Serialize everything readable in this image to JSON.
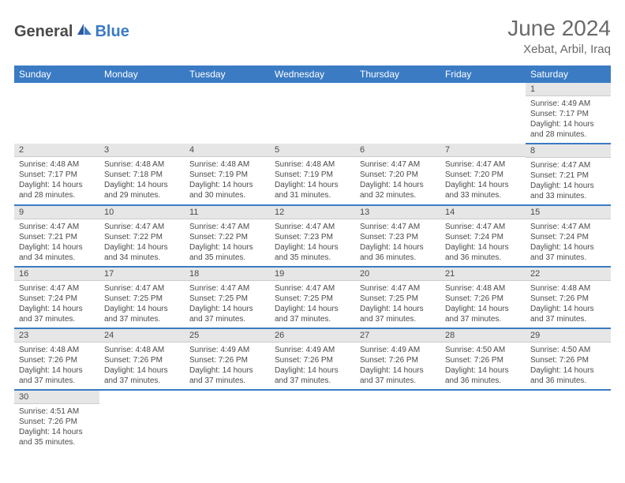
{
  "logo": {
    "text_general": "General",
    "text_blue": "Blue"
  },
  "header": {
    "month_title": "June 2024",
    "location": "Xebat, Arbil, Iraq"
  },
  "colors": {
    "header_bg": "#3b7bc4",
    "header_text": "#ffffff",
    "day_num_bg": "#e6e6e6",
    "text": "#4a4a4a",
    "border": "#3b7bc4"
  },
  "day_names": [
    "Sunday",
    "Monday",
    "Tuesday",
    "Wednesday",
    "Thursday",
    "Friday",
    "Saturday"
  ],
  "weeks": [
    [
      null,
      null,
      null,
      null,
      null,
      null,
      {
        "num": "1",
        "sunrise": "Sunrise: 4:49 AM",
        "sunset": "Sunset: 7:17 PM",
        "daylight": "Daylight: 14 hours and 28 minutes."
      }
    ],
    [
      {
        "num": "2",
        "sunrise": "Sunrise: 4:48 AM",
        "sunset": "Sunset: 7:17 PM",
        "daylight": "Daylight: 14 hours and 28 minutes."
      },
      {
        "num": "3",
        "sunrise": "Sunrise: 4:48 AM",
        "sunset": "Sunset: 7:18 PM",
        "daylight": "Daylight: 14 hours and 29 minutes."
      },
      {
        "num": "4",
        "sunrise": "Sunrise: 4:48 AM",
        "sunset": "Sunset: 7:19 PM",
        "daylight": "Daylight: 14 hours and 30 minutes."
      },
      {
        "num": "5",
        "sunrise": "Sunrise: 4:48 AM",
        "sunset": "Sunset: 7:19 PM",
        "daylight": "Daylight: 14 hours and 31 minutes."
      },
      {
        "num": "6",
        "sunrise": "Sunrise: 4:47 AM",
        "sunset": "Sunset: 7:20 PM",
        "daylight": "Daylight: 14 hours and 32 minutes."
      },
      {
        "num": "7",
        "sunrise": "Sunrise: 4:47 AM",
        "sunset": "Sunset: 7:20 PM",
        "daylight": "Daylight: 14 hours and 33 minutes."
      },
      {
        "num": "8",
        "sunrise": "Sunrise: 4:47 AM",
        "sunset": "Sunset: 7:21 PM",
        "daylight": "Daylight: 14 hours and 33 minutes."
      }
    ],
    [
      {
        "num": "9",
        "sunrise": "Sunrise: 4:47 AM",
        "sunset": "Sunset: 7:21 PM",
        "daylight": "Daylight: 14 hours and 34 minutes."
      },
      {
        "num": "10",
        "sunrise": "Sunrise: 4:47 AM",
        "sunset": "Sunset: 7:22 PM",
        "daylight": "Daylight: 14 hours and 34 minutes."
      },
      {
        "num": "11",
        "sunrise": "Sunrise: 4:47 AM",
        "sunset": "Sunset: 7:22 PM",
        "daylight": "Daylight: 14 hours and 35 minutes."
      },
      {
        "num": "12",
        "sunrise": "Sunrise: 4:47 AM",
        "sunset": "Sunset: 7:23 PM",
        "daylight": "Daylight: 14 hours and 35 minutes."
      },
      {
        "num": "13",
        "sunrise": "Sunrise: 4:47 AM",
        "sunset": "Sunset: 7:23 PM",
        "daylight": "Daylight: 14 hours and 36 minutes."
      },
      {
        "num": "14",
        "sunrise": "Sunrise: 4:47 AM",
        "sunset": "Sunset: 7:24 PM",
        "daylight": "Daylight: 14 hours and 36 minutes."
      },
      {
        "num": "15",
        "sunrise": "Sunrise: 4:47 AM",
        "sunset": "Sunset: 7:24 PM",
        "daylight": "Daylight: 14 hours and 37 minutes."
      }
    ],
    [
      {
        "num": "16",
        "sunrise": "Sunrise: 4:47 AM",
        "sunset": "Sunset: 7:24 PM",
        "daylight": "Daylight: 14 hours and 37 minutes."
      },
      {
        "num": "17",
        "sunrise": "Sunrise: 4:47 AM",
        "sunset": "Sunset: 7:25 PM",
        "daylight": "Daylight: 14 hours and 37 minutes."
      },
      {
        "num": "18",
        "sunrise": "Sunrise: 4:47 AM",
        "sunset": "Sunset: 7:25 PM",
        "daylight": "Daylight: 14 hours and 37 minutes."
      },
      {
        "num": "19",
        "sunrise": "Sunrise: 4:47 AM",
        "sunset": "Sunset: 7:25 PM",
        "daylight": "Daylight: 14 hours and 37 minutes."
      },
      {
        "num": "20",
        "sunrise": "Sunrise: 4:47 AM",
        "sunset": "Sunset: 7:25 PM",
        "daylight": "Daylight: 14 hours and 37 minutes."
      },
      {
        "num": "21",
        "sunrise": "Sunrise: 4:48 AM",
        "sunset": "Sunset: 7:26 PM",
        "daylight": "Daylight: 14 hours and 37 minutes."
      },
      {
        "num": "22",
        "sunrise": "Sunrise: 4:48 AM",
        "sunset": "Sunset: 7:26 PM",
        "daylight": "Daylight: 14 hours and 37 minutes."
      }
    ],
    [
      {
        "num": "23",
        "sunrise": "Sunrise: 4:48 AM",
        "sunset": "Sunset: 7:26 PM",
        "daylight": "Daylight: 14 hours and 37 minutes."
      },
      {
        "num": "24",
        "sunrise": "Sunrise: 4:48 AM",
        "sunset": "Sunset: 7:26 PM",
        "daylight": "Daylight: 14 hours and 37 minutes."
      },
      {
        "num": "25",
        "sunrise": "Sunrise: 4:49 AM",
        "sunset": "Sunset: 7:26 PM",
        "daylight": "Daylight: 14 hours and 37 minutes."
      },
      {
        "num": "26",
        "sunrise": "Sunrise: 4:49 AM",
        "sunset": "Sunset: 7:26 PM",
        "daylight": "Daylight: 14 hours and 37 minutes."
      },
      {
        "num": "27",
        "sunrise": "Sunrise: 4:49 AM",
        "sunset": "Sunset: 7:26 PM",
        "daylight": "Daylight: 14 hours and 37 minutes."
      },
      {
        "num": "28",
        "sunrise": "Sunrise: 4:50 AM",
        "sunset": "Sunset: 7:26 PM",
        "daylight": "Daylight: 14 hours and 36 minutes."
      },
      {
        "num": "29",
        "sunrise": "Sunrise: 4:50 AM",
        "sunset": "Sunset: 7:26 PM",
        "daylight": "Daylight: 14 hours and 36 minutes."
      }
    ],
    [
      {
        "num": "30",
        "sunrise": "Sunrise: 4:51 AM",
        "sunset": "Sunset: 7:26 PM",
        "daylight": "Daylight: 14 hours and 35 minutes."
      },
      null,
      null,
      null,
      null,
      null,
      null
    ]
  ]
}
